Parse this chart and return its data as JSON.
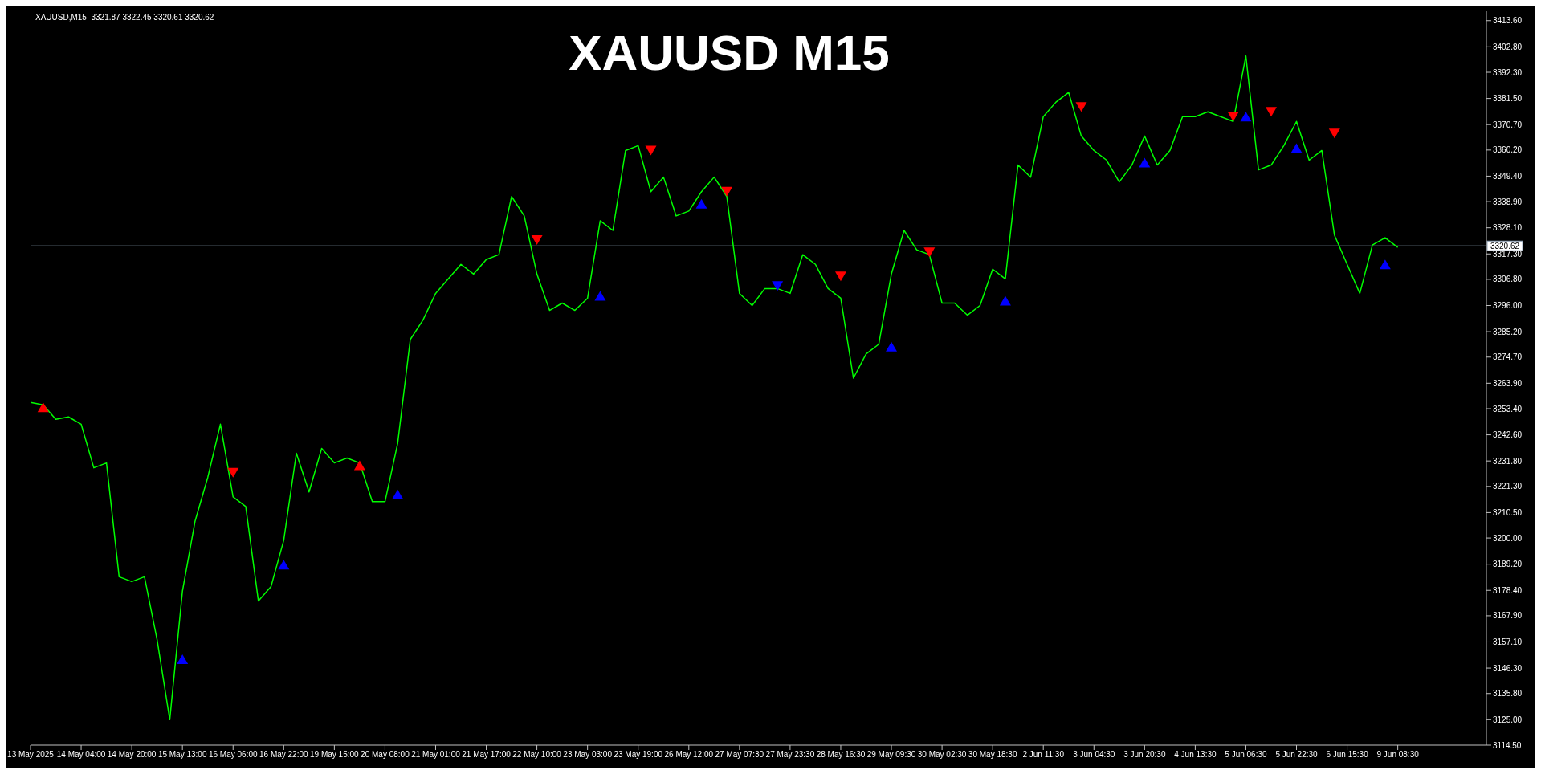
{
  "chart_data": {
    "type": "line",
    "title": "XAUUSD M15",
    "annotations": [
      "XAUUSD,M15  3321.87 3322.45 3320.61 3320.62"
    ],
    "categories": [
      "13 May 2025",
      null,
      null,
      null,
      "14 May 04:00",
      null,
      null,
      null,
      "14 May 20:00",
      null,
      null,
      null,
      "15 May 13:00",
      null,
      null,
      null,
      "16 May 06:00",
      null,
      null,
      null,
      "16 May 22:00",
      null,
      null,
      null,
      "19 May 15:00",
      null,
      null,
      null,
      "20 May 08:00",
      null,
      null,
      null,
      "21 May 01:00",
      null,
      null,
      null,
      "21 May 17:00",
      null,
      null,
      null,
      "22 May 10:00",
      null,
      null,
      null,
      "23 May 03:00",
      null,
      null,
      null,
      "23 May 19:00",
      null,
      null,
      null,
      "26 May 12:00",
      null,
      null,
      null,
      "27 May 07:30",
      null,
      null,
      null,
      "27 May 23:30",
      null,
      null,
      null,
      "28 May 16:30",
      null,
      null,
      null,
      "29 May 09:30",
      null,
      null,
      null,
      "30 May 02:30",
      null,
      null,
      null,
      "30 May 18:30",
      null,
      null,
      null,
      "2 Jun 11:30",
      null,
      null,
      null,
      "3 Jun 04:30",
      null,
      null,
      null,
      "3 Jun 20:30",
      null,
      null,
      null,
      "4 Jun 13:30",
      null,
      null,
      null,
      "5 Jun 06:30",
      null,
      null,
      null,
      "5 Jun 22:30",
      null,
      null,
      null,
      "6 Jun 15:30",
      null,
      null,
      null,
      "9 Jun 08:30",
      null,
      null,
      null,
      null,
      null,
      null,
      null
    ],
    "series": [
      {
        "color": "#00ff00",
        "values": [
          3256,
          3255,
          3249,
          3250,
          3247,
          3229,
          3231,
          3184,
          3182,
          3184,
          3158,
          3125,
          3178,
          3207,
          3225,
          3247,
          3217,
          3213,
          3174,
          3180,
          3199,
          3235,
          3219,
          3237,
          3231,
          3233,
          3231,
          3215,
          3215,
          3239,
          3282,
          3290,
          3301,
          3307,
          3313,
          3309,
          3315,
          3317,
          3341,
          3333,
          3309,
          3294,
          3297,
          3294,
          3299,
          3331,
          3327,
          3360,
          3362,
          3343,
          3349,
          3333,
          3335,
          3343,
          3349,
          3341,
          3301,
          3296,
          3303,
          3303,
          3301,
          3317,
          3313,
          3303,
          3299,
          3266,
          3276,
          3280,
          3309,
          3327,
          3319,
          3317,
          3297,
          3297,
          3292,
          3296,
          3311,
          3307,
          3354,
          3349,
          3374,
          3380,
          3384,
          3366,
          3360,
          3356,
          3347,
          3354,
          3366,
          3354,
          3360,
          3374,
          3374,
          3376,
          3374,
          3372,
          3399,
          3352,
          3354,
          3362,
          3372,
          3356,
          3360,
          3325,
          3313,
          3301,
          3321,
          3324,
          3320,
          null,
          null,
          null,
          null,
          null,
          null,
          null
        ]
      },
      {
        "type": "scatter",
        "color": "#ff0000",
        "marker": "triangle",
        "values": [
          null,
          3254,
          null,
          null,
          null,
          null,
          null,
          null,
          null,
          null,
          null,
          null,
          null,
          null,
          null,
          null,
          3227,
          null,
          null,
          null,
          null,
          null,
          null,
          null,
          null,
          null,
          3230,
          null,
          null,
          null,
          null,
          null,
          null,
          null,
          null,
          null,
          null,
          null,
          null,
          null,
          3323,
          null,
          null,
          null,
          null,
          null,
          null,
          null,
          null,
          3360,
          null,
          null,
          null,
          null,
          null,
          3343,
          null,
          null,
          null,
          null,
          null,
          null,
          null,
          null,
          3308,
          null,
          null,
          null,
          null,
          null,
          null,
          3318,
          null,
          null,
          null,
          null,
          null,
          null,
          null,
          null,
          null,
          null,
          null,
          3378,
          null,
          null,
          null,
          null,
          null,
          null,
          null,
          null,
          null,
          null,
          null,
          3374,
          null,
          null,
          3376,
          null,
          null,
          null,
          null,
          3367,
          null,
          null,
          null,
          null,
          null,
          null,
          null,
          null,
          null,
          null,
          null,
          null
        ]
      },
      {
        "type": "scatter",
        "color": "#0000ff",
        "marker": "triangle",
        "values": [
          null,
          null,
          null,
          null,
          null,
          null,
          null,
          null,
          null,
          null,
          null,
          null,
          3150,
          null,
          null,
          null,
          null,
          null,
          null,
          null,
          3189,
          null,
          null,
          null,
          null,
          null,
          null,
          null,
          null,
          3218,
          null,
          null,
          null,
          null,
          null,
          null,
          null,
          null,
          null,
          null,
          null,
          null,
          null,
          null,
          null,
          3300,
          null,
          null,
          null,
          null,
          null,
          null,
          null,
          3338,
          null,
          null,
          null,
          null,
          null,
          3304,
          null,
          null,
          null,
          null,
          null,
          null,
          null,
          null,
          3279,
          null,
          null,
          null,
          null,
          null,
          null,
          null,
          null,
          3298,
          null,
          null,
          null,
          null,
          null,
          null,
          null,
          null,
          null,
          null,
          3355,
          null,
          null,
          null,
          null,
          null,
          null,
          null,
          3374,
          null,
          null,
          null,
          3361,
          null,
          null,
          null,
          null,
          null,
          null,
          3313,
          null,
          null,
          null,
          null,
          null,
          null,
          null,
          null
        ]
      }
    ],
    "ylim": [
      3114.5,
      3417.5
    ],
    "yticks": [
      {
        "value": 3413.6,
        "label": "3413.60"
      },
      {
        "value": 3402.8,
        "label": "3402.80"
      },
      {
        "value": 3392.3,
        "label": "3392.30"
      },
      {
        "value": 3381.5,
        "label": "3381.50"
      },
      {
        "value": 3370.7,
        "label": "3370.70"
      },
      {
        "value": 3360.2,
        "label": "3360.20"
      },
      {
        "value": 3349.4,
        "label": "3349.40"
      },
      {
        "value": 3338.9,
        "label": "3338.90"
      },
      {
        "value": 3328.1,
        "label": "3328.10"
      },
      {
        "value": 3317.3,
        "label": "3317.30"
      },
      {
        "value": 3306.8,
        "label": "3306.80"
      },
      {
        "value": 3296,
        "label": "3296.00"
      },
      {
        "value": 3285.2,
        "label": "3285.20"
      },
      {
        "value": 3274.7,
        "label": "3274.70"
      },
      {
        "value": 3263.9,
        "label": "3263.90"
      },
      {
        "value": 3253.4,
        "label": "3253.40"
      },
      {
        "value": 3242.6,
        "label": "3242.60"
      },
      {
        "value": 3231.8,
        "label": "3231.80"
      },
      {
        "value": 3221.3,
        "label": "3221.30"
      },
      {
        "value": 3210.5,
        "label": "3210.50"
      },
      {
        "value": 3200,
        "label": "3200.00"
      },
      {
        "value": 3189.2,
        "label": "3189.20"
      },
      {
        "value": 3178.4,
        "label": "3178.40"
      },
      {
        "value": 3167.9,
        "label": "3167.90"
      },
      {
        "value": 3157.1,
        "label": "3157.10"
      },
      {
        "value": 3146.3,
        "label": "3146.30"
      },
      {
        "value": 3135.8,
        "label": "3135.80"
      },
      {
        "value": 3125,
        "label": "3125.00"
      },
      {
        "value": 3114.5,
        "label": "3114.50"
      }
    ],
    "ref_lines": [
      {
        "axis": "y",
        "value": 3320.62,
        "label": "3320.62",
        "color": "#8fa3b8"
      }
    ]
  }
}
